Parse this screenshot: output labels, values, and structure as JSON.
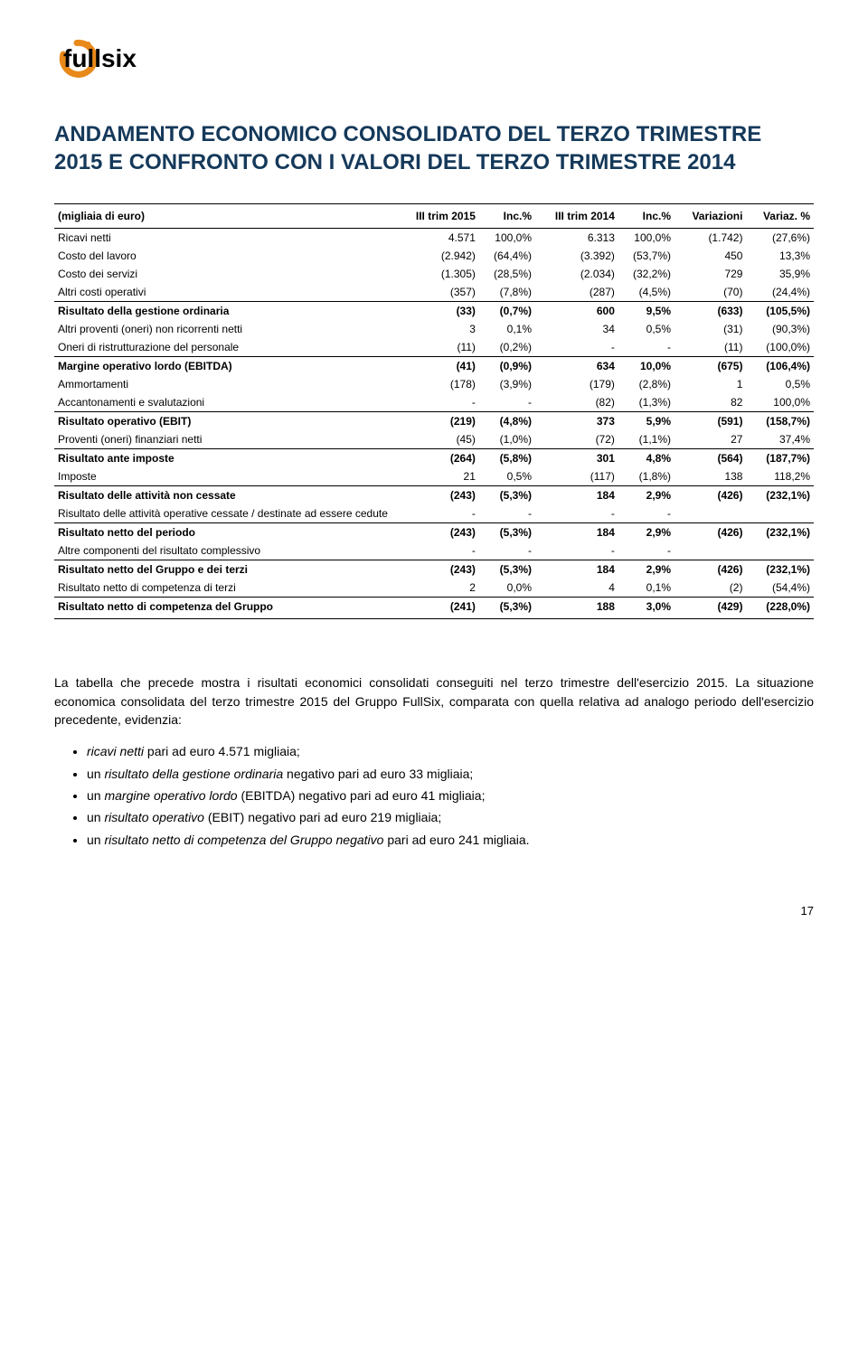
{
  "logo": {
    "text": "fullsix"
  },
  "title": "ANDAMENTO ECONOMICO CONSOLIDATO DEL TERZO TRIMESTRE 2015 E CONFRONTO CON I VALORI DEL TERZO TRIMESTRE 2014",
  "table": {
    "headers": [
      "(migliaia di euro)",
      "III trim 2015",
      "Inc.%",
      "III trim 2014",
      "Inc.%",
      "Variazioni",
      "Variaz. %"
    ],
    "rows": [
      {
        "bold": false,
        "sep": false,
        "cells": [
          "Ricavi netti",
          "4.571",
          "100,0%",
          "6.313",
          "100,0%",
          "(1.742)",
          "(27,6%)"
        ]
      },
      {
        "bold": false,
        "sep": false,
        "cells": [
          "Costo del lavoro",
          "(2.942)",
          "(64,4%)",
          "(3.392)",
          "(53,7%)",
          "450",
          "13,3%"
        ]
      },
      {
        "bold": false,
        "sep": false,
        "cells": [
          "Costo dei servizi",
          "(1.305)",
          "(28,5%)",
          "(2.034)",
          "(32,2%)",
          "729",
          "35,9%"
        ]
      },
      {
        "bold": false,
        "sep": true,
        "cells": [
          "Altri costi operativi",
          "(357)",
          "(7,8%)",
          "(287)",
          "(4,5%)",
          "(70)",
          "(24,4%)"
        ]
      },
      {
        "bold": true,
        "sep": false,
        "cells": [
          "Risultato della gestione ordinaria",
          "(33)",
          "(0,7%)",
          "600",
          "9,5%",
          "(633)",
          "(105,5%)"
        ]
      },
      {
        "bold": false,
        "sep": false,
        "cells": [
          "Altri proventi (oneri) non ricorrenti netti",
          "3",
          "0,1%",
          "34",
          "0,5%",
          "(31)",
          "(90,3%)"
        ]
      },
      {
        "bold": false,
        "sep": true,
        "cells": [
          "Oneri di ristrutturazione del personale",
          "(11)",
          "(0,2%)",
          "-",
          "-",
          "(11)",
          "(100,0%)"
        ]
      },
      {
        "bold": true,
        "sep": false,
        "cells": [
          "Margine operativo lordo (EBITDA)",
          "(41)",
          "(0,9%)",
          "634",
          "10,0%",
          "(675)",
          "(106,4%)"
        ]
      },
      {
        "bold": false,
        "sep": false,
        "cells": [
          "Ammortamenti",
          "(178)",
          "(3,9%)",
          "(179)",
          "(2,8%)",
          "1",
          "0,5%"
        ]
      },
      {
        "bold": false,
        "sep": true,
        "cells": [
          "Accantonamenti e svalutazioni",
          "-",
          "-",
          "(82)",
          "(1,3%)",
          "82",
          "100,0%"
        ]
      },
      {
        "bold": true,
        "sep": false,
        "cells": [
          "Risultato operativo (EBIT)",
          "(219)",
          "(4,8%)",
          "373",
          "5,9%",
          "(591)",
          "(158,7%)"
        ]
      },
      {
        "bold": false,
        "sep": true,
        "cells": [
          "Proventi (oneri) finanziari netti",
          "(45)",
          "(1,0%)",
          "(72)",
          "(1,1%)",
          "27",
          "37,4%"
        ]
      },
      {
        "bold": true,
        "sep": false,
        "cells": [
          "Risultato ante imposte",
          "(264)",
          "(5,8%)",
          "301",
          "4,8%",
          "(564)",
          "(187,7%)"
        ]
      },
      {
        "bold": false,
        "sep": true,
        "cells": [
          "Imposte",
          "21",
          "0,5%",
          "(117)",
          "(1,8%)",
          "138",
          "118,2%"
        ]
      },
      {
        "bold": true,
        "sep": false,
        "cells": [
          "Risultato delle attività non cessate",
          "(243)",
          "(5,3%)",
          "184",
          "2,9%",
          "(426)",
          "(232,1%)"
        ]
      },
      {
        "bold": false,
        "sep": true,
        "cells": [
          "Risultato delle attività operative cessate / destinate ad essere cedute",
          "-",
          "-",
          "-",
          "-",
          "",
          ""
        ]
      },
      {
        "bold": true,
        "sep": false,
        "cells": [
          "Risultato netto del periodo",
          "(243)",
          "(5,3%)",
          "184",
          "2,9%",
          "(426)",
          "(232,1%)"
        ]
      },
      {
        "bold": false,
        "sep": true,
        "cells": [
          "Altre componenti del risultato complessivo",
          "-",
          "-",
          "-",
          "-",
          "",
          ""
        ]
      },
      {
        "bold": true,
        "sep": false,
        "cells": [
          "Risultato netto del Gruppo e dei terzi",
          "(243)",
          "(5,3%)",
          "184",
          "2,9%",
          "(426)",
          "(232,1%)"
        ]
      },
      {
        "bold": false,
        "sep": true,
        "cells": [
          "Risultato netto di competenza di terzi",
          "2",
          "0,0%",
          "4",
          "0,1%",
          "(2)",
          "(54,4%)"
        ]
      },
      {
        "bold": true,
        "sep": false,
        "last": true,
        "cells": [
          "Risultato netto di competenza del Gruppo",
          "(241)",
          "(5,3%)",
          "188",
          "3,0%",
          "(429)",
          "(228,0%)"
        ]
      }
    ]
  },
  "paragraphs": [
    "La tabella che precede mostra i risultati economici consolidati conseguiti nel terzo trimestre dell'esercizio 2015. La situazione economica consolidata del terzo trimestre 2015 del Gruppo FullSix, comparata con quella relativa ad analogo periodo dell'esercizio precedente, evidenzia:"
  ],
  "bullets": [
    {
      "italic": "ricavi netti",
      "rest": " pari ad euro 4.571 migliaia;"
    },
    {
      "italic": "risultato della gestione ordinaria",
      "prefix": "un ",
      "rest": " negativo pari ad euro 33 migliaia;"
    },
    {
      "italic": "margine operativo lordo",
      "prefix": "un ",
      "rest": " (EBITDA)  negativo pari ad euro 41 migliaia;"
    },
    {
      "italic": "risultato operativo",
      "prefix": "un ",
      "rest": " (EBIT) negativo pari ad euro 219 migliaia;"
    },
    {
      "italic": "risultato netto di competenza del Gruppo negativo",
      "prefix": "un ",
      "rest": " pari ad euro 241 migliaia."
    }
  ],
  "page_number": "17",
  "colors": {
    "title": "#15395a",
    "logo_orange": "#e8891a",
    "text": "#000000",
    "border": "#000000"
  }
}
